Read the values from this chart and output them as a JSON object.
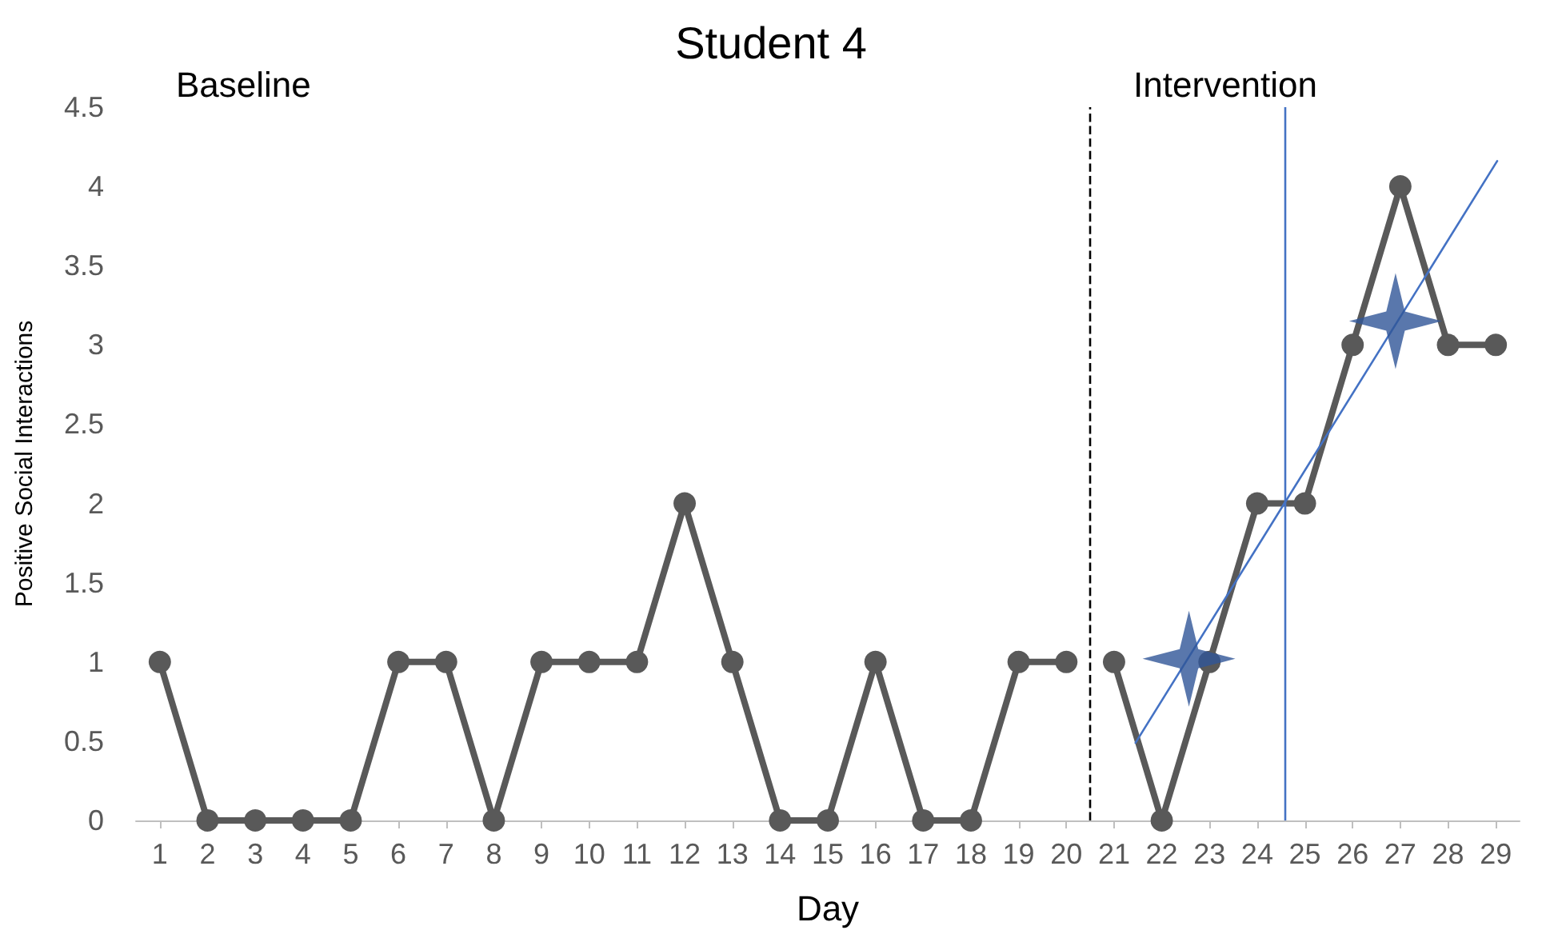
{
  "chart_data": {
    "type": "line",
    "title": "Student 4",
    "xlabel": "Day",
    "ylabel": "Positive Social Interactions",
    "annotations": [
      "Baseline",
      "Intervention"
    ],
    "xlim": [
      0.5,
      29.5
    ],
    "xticks": [
      1,
      2,
      3,
      4,
      5,
      6,
      7,
      8,
      9,
      10,
      11,
      12,
      13,
      14,
      15,
      16,
      17,
      18,
      19,
      20,
      21,
      22,
      23,
      24,
      25,
      26,
      27,
      28,
      29
    ],
    "ylim": [
      0,
      4.5
    ],
    "yticks": [
      0,
      0.5,
      1,
      1.5,
      2,
      2.5,
      3,
      3.5,
      4,
      4.5
    ],
    "grid": false,
    "marker": "circle",
    "line_style": "solid",
    "series": [
      {
        "color": "#595959",
        "x": [
          1,
          2,
          3,
          4,
          5,
          6,
          7,
          8,
          9,
          10,
          11,
          12,
          13,
          14,
          15,
          16,
          17,
          18,
          19,
          20
        ],
        "values": [
          1,
          0,
          0,
          0,
          0,
          1,
          1,
          0,
          1,
          1,
          1,
          2,
          1,
          0,
          0,
          1,
          0,
          0,
          1,
          1
        ]
      },
      {
        "color": "#595959",
        "x": [
          21,
          22,
          23,
          24,
          25,
          26,
          27,
          28,
          29
        ],
        "values": [
          1,
          0,
          1,
          2,
          2,
          3,
          4,
          3,
          3
        ]
      },
      {
        "type": "line",
        "color": "#4472c4",
        "marker": "none",
        "x": [
          21.45,
          29.03
        ],
        "values": [
          0.49,
          4.16
        ]
      },
      {
        "type": "scatter",
        "color": "#2f5597",
        "marker": "star",
        "x": [
          22.57,
          26.9
        ],
        "values": [
          1.02,
          3.15
        ]
      }
    ],
    "ref_lines": [
      {
        "axis": "x",
        "value": 20.5,
        "color": "#000000",
        "line_style": "dashed"
      },
      {
        "axis": "x",
        "value": 24.58,
        "color": "#4472c4",
        "line_style": "solid"
      }
    ]
  }
}
